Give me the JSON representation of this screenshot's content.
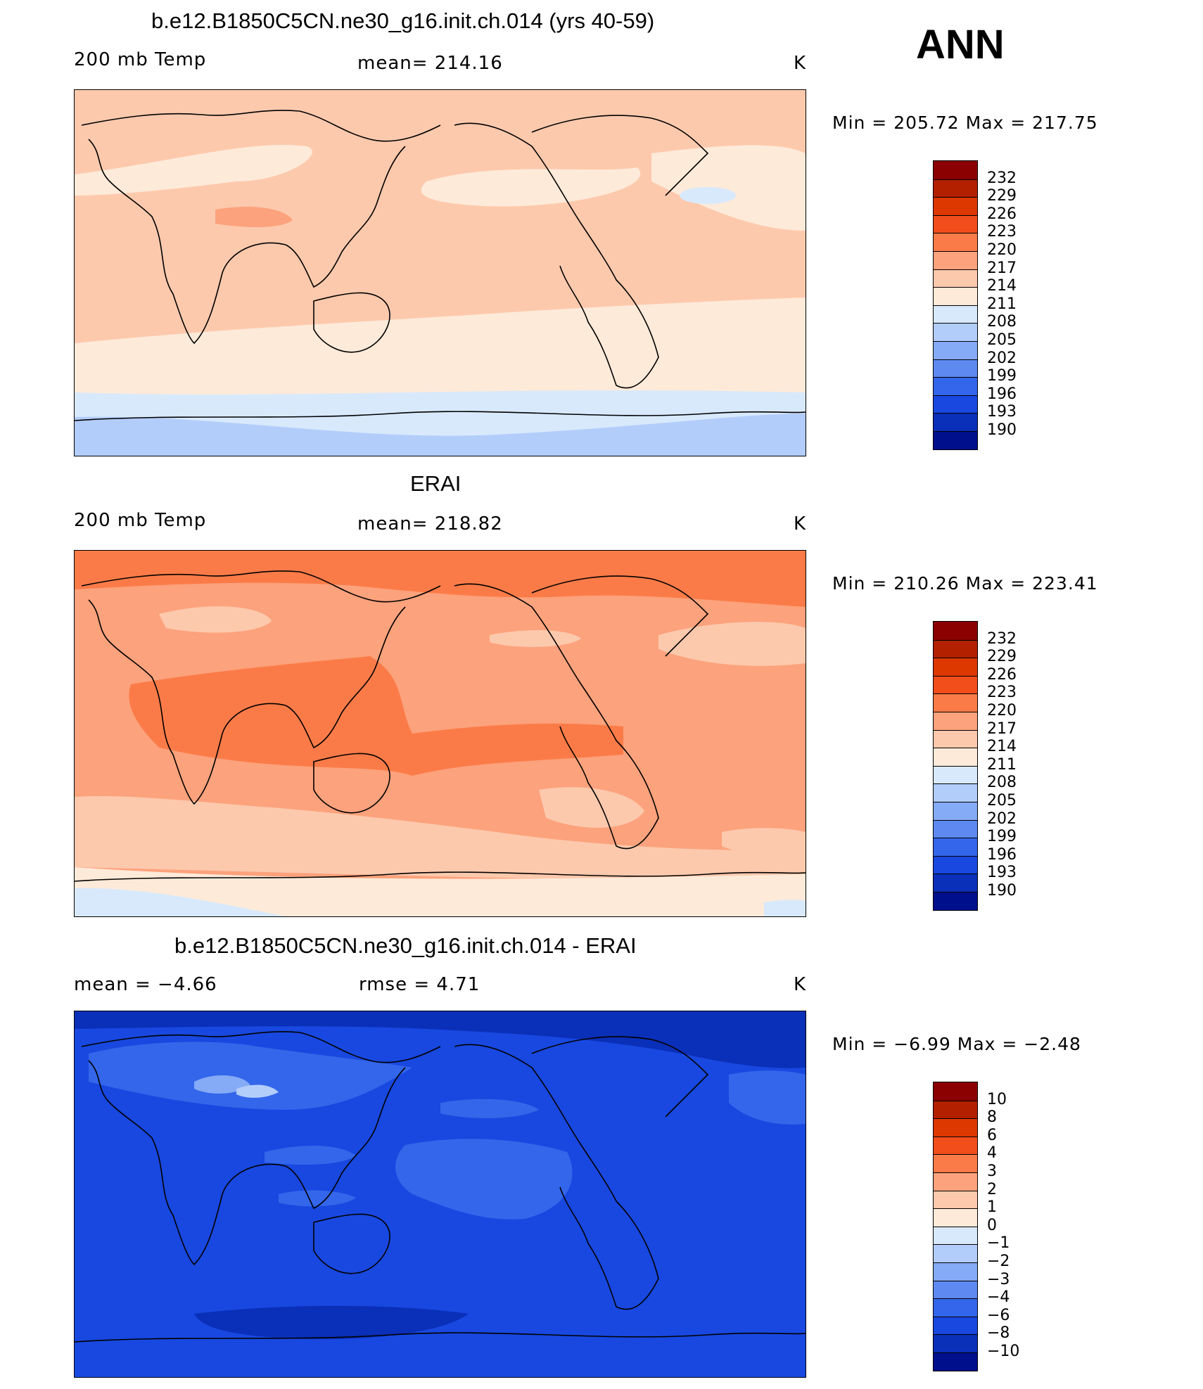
{
  "season": "ANN",
  "panels": [
    {
      "title": "b.e12.B1850C5CN.ne30_g16.init.ch.014 (yrs 40-59)",
      "left_label": "200 mb Temp",
      "center_label": "mean=  214.16",
      "units": "K",
      "minmax": "Min  =  205.72  Max  =  217.75",
      "colorbar_labels": [
        "232",
        "229",
        "226",
        "223",
        "220",
        "217",
        "214",
        "211",
        "208",
        "205",
        "202",
        "199",
        "196",
        "193",
        "190"
      ]
    },
    {
      "title": "ERAI",
      "left_label": "200 mb Temp",
      "center_label": "mean=  218.82",
      "units": "K",
      "minmax": "Min  =  210.26  Max  =  223.41",
      "colorbar_labels": [
        "232",
        "229",
        "226",
        "223",
        "220",
        "217",
        "214",
        "211",
        "208",
        "205",
        "202",
        "199",
        "196",
        "193",
        "190"
      ]
    },
    {
      "title": "b.e12.B1850C5CN.ne30_g16.init.ch.014 - ERAI",
      "left_label": "mean  =    −4.66",
      "center_label": "rmse  =     4.71",
      "units": "K",
      "minmax": "Min  =    −6.99  Max  =    −2.48",
      "colorbar_labels": [
        "10",
        "8",
        "6",
        "4",
        "3",
        "2",
        "1",
        "0",
        "−1",
        "−2",
        "−3",
        "−4",
        "−6",
        "−8",
        "−10"
      ]
    }
  ],
  "colorbar_colors": [
    "#8b0000",
    "#b22000",
    "#dc3800",
    "#f24e1c",
    "#fb7b48",
    "#fca27c",
    "#fdc9ad",
    "#feead9",
    "#d8e9fc",
    "#b3cdfb",
    "#85aaf6",
    "#5d89f0",
    "#3366ea",
    "#1848e0",
    "#0a2fb8",
    "#000f8c"
  ]
}
